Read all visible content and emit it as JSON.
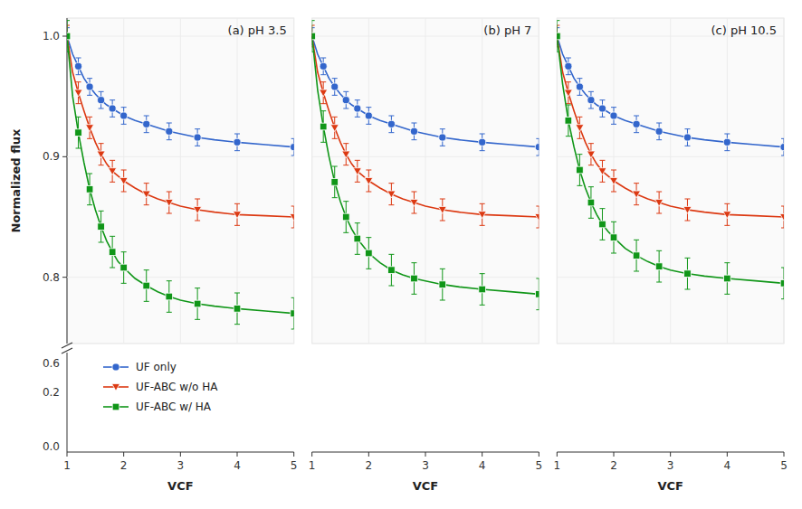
{
  "chart_data": [
    {
      "type": "line",
      "title": "(a) pH 3.5",
      "xlabel": "VCF",
      "ylabel": "Normalized flux",
      "x": [
        1.0,
        1.1,
        1.2,
        1.3,
        1.4,
        1.5,
        1.6,
        1.7,
        1.8,
        1.9,
        2.0,
        2.2,
        2.4,
        2.6,
        2.8,
        3.0,
        3.3,
        3.6,
        4.0,
        4.5,
        5.0
      ],
      "marker_indices": [
        0,
        2,
        4,
        6,
        8,
        10,
        12,
        14,
        16,
        18,
        20
      ],
      "series": [
        {
          "name": "UF only",
          "color": "#3366cc",
          "marker": "circle",
          "error": 0.007,
          "values": [
            1.0,
            0.985,
            0.975,
            0.965,
            0.958,
            0.952,
            0.947,
            0.943,
            0.94,
            0.937,
            0.934,
            0.93,
            0.927,
            0.924,
            0.921,
            0.919,
            0.916,
            0.914,
            0.912,
            0.91,
            0.908
          ]
        },
        {
          "name": "UF-ABC w/o HA",
          "color": "#dc3912",
          "marker": "triangle-down",
          "error": 0.009,
          "values": [
            1.0,
            0.97,
            0.953,
            0.938,
            0.924,
            0.912,
            0.902,
            0.894,
            0.888,
            0.884,
            0.88,
            0.874,
            0.869,
            0.865,
            0.862,
            0.859,
            0.856,
            0.854,
            0.852,
            0.851,
            0.85
          ]
        },
        {
          "name": "UF-ABC w/ HA",
          "color": "#109618",
          "marker": "square",
          "error": 0.013,
          "values": [
            1.0,
            0.95,
            0.92,
            0.895,
            0.873,
            0.856,
            0.842,
            0.83,
            0.821,
            0.813,
            0.808,
            0.799,
            0.793,
            0.788,
            0.784,
            0.781,
            0.778,
            0.776,
            0.774,
            0.772,
            0.77
          ]
        }
      ],
      "xlim": [
        1,
        5
      ],
      "xticks": [
        1,
        2,
        3,
        4,
        5
      ],
      "ylim": [
        0.745,
        1.015
      ],
      "yticks": [
        0.8,
        0.9,
        {
          "value": 1.0,
          "label": "1.0"
        }
      ],
      "annotations": [
        {
          "text": "0.6"
        },
        {
          "text": "0.2"
        },
        {
          "text": "0.0"
        }
      ],
      "legend": "bottom"
    },
    {
      "type": "line",
      "title": "(b) pH 7",
      "xlabel": "VCF",
      "x": [
        1.0,
        1.1,
        1.2,
        1.3,
        1.4,
        1.5,
        1.6,
        1.7,
        1.8,
        1.9,
        2.0,
        2.2,
        2.4,
        2.6,
        2.8,
        3.0,
        3.3,
        3.6,
        4.0,
        4.5,
        5.0
      ],
      "marker_indices": [
        0,
        2,
        4,
        6,
        8,
        10,
        12,
        14,
        16,
        18,
        20
      ],
      "series": [
        {
          "name": "UF only",
          "color": "#3366cc",
          "marker": "circle",
          "error": 0.007,
          "values": [
            1.0,
            0.985,
            0.975,
            0.965,
            0.958,
            0.952,
            0.947,
            0.943,
            0.94,
            0.937,
            0.934,
            0.93,
            0.927,
            0.924,
            0.921,
            0.919,
            0.916,
            0.914,
            0.912,
            0.91,
            0.908
          ]
        },
        {
          "name": "UF-ABC w/o HA",
          "color": "#dc3912",
          "marker": "triangle-down",
          "error": 0.009,
          "values": [
            1.0,
            0.97,
            0.953,
            0.938,
            0.924,
            0.912,
            0.902,
            0.894,
            0.888,
            0.884,
            0.88,
            0.874,
            0.869,
            0.865,
            0.862,
            0.859,
            0.856,
            0.854,
            0.852,
            0.851,
            0.85
          ]
        },
        {
          "name": "UF-ABC w/ HA",
          "color": "#109618",
          "marker": "square",
          "error": 0.013,
          "values": [
            1.0,
            0.955,
            0.925,
            0.9,
            0.879,
            0.863,
            0.85,
            0.84,
            0.832,
            0.826,
            0.82,
            0.812,
            0.806,
            0.802,
            0.799,
            0.797,
            0.794,
            0.792,
            0.79,
            0.788,
            0.786
          ]
        }
      ],
      "xlim": [
        1,
        5
      ],
      "xticks": [
        1,
        2,
        3,
        4,
        5
      ],
      "ylim": [
        0.745,
        1.015
      ],
      "tick_labels": "x"
    },
    {
      "type": "line",
      "title": "(c) pH 10.5",
      "xlabel": "VCF",
      "x": [
        1.0,
        1.1,
        1.2,
        1.3,
        1.4,
        1.5,
        1.6,
        1.7,
        1.8,
        1.9,
        2.0,
        2.2,
        2.4,
        2.6,
        2.8,
        3.0,
        3.3,
        3.6,
        4.0,
        4.5,
        5.0
      ],
      "marker_indices": [
        0,
        2,
        4,
        6,
        8,
        10,
        12,
        14,
        16,
        18,
        20
      ],
      "series": [
        {
          "name": "UF only",
          "color": "#3366cc",
          "marker": "circle",
          "error": 0.007,
          "values": [
            1.0,
            0.985,
            0.975,
            0.965,
            0.958,
            0.952,
            0.947,
            0.943,
            0.94,
            0.937,
            0.934,
            0.93,
            0.927,
            0.924,
            0.921,
            0.919,
            0.916,
            0.914,
            0.912,
            0.91,
            0.908
          ]
        },
        {
          "name": "UF-ABC w/o HA",
          "color": "#dc3912",
          "marker": "triangle-down",
          "error": 0.009,
          "values": [
            1.0,
            0.97,
            0.953,
            0.938,
            0.924,
            0.912,
            0.902,
            0.894,
            0.888,
            0.884,
            0.88,
            0.874,
            0.869,
            0.865,
            0.862,
            0.859,
            0.856,
            0.854,
            0.852,
            0.851,
            0.85
          ]
        },
        {
          "name": "UF-ABC w/ HA",
          "color": "#109618",
          "marker": "square",
          "error": 0.013,
          "values": [
            1.0,
            0.96,
            0.93,
            0.908,
            0.889,
            0.874,
            0.862,
            0.852,
            0.844,
            0.838,
            0.833,
            0.824,
            0.818,
            0.813,
            0.809,
            0.806,
            0.803,
            0.801,
            0.799,
            0.797,
            0.795
          ]
        }
      ],
      "xlim": [
        1,
        5
      ],
      "xticks": [
        1,
        2,
        3,
        4,
        5
      ],
      "ylim": [
        0.745,
        1.015
      ],
      "tick_labels": "x"
    }
  ]
}
